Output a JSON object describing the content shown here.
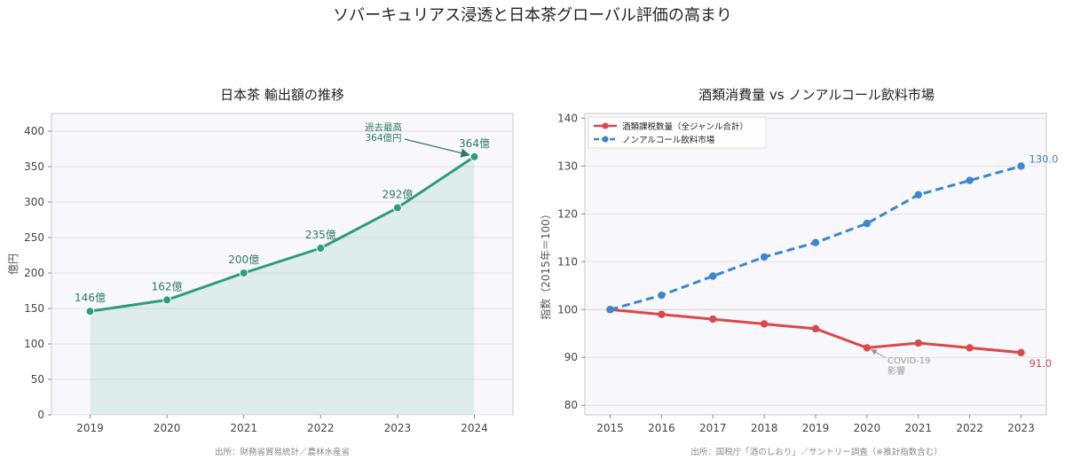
{
  "figure": {
    "title": "ソバーキュリアス浸透と日本茶グローバル評価の高まり"
  },
  "chart_data": [
    {
      "type": "area",
      "title": "日本茶 輸出額の推移",
      "xlabel": "",
      "ylabel": "億円",
      "categories": [
        "2019",
        "2020",
        "2021",
        "2022",
        "2023",
        "2024"
      ],
      "series": [
        {
          "values": [
            146,
            162,
            200,
            235,
            292,
            364
          ],
          "data_labels": [
            "146億",
            "162億",
            "200億",
            "235億",
            "292億",
            "364億"
          ],
          "color": "#2a9d7c"
        }
      ],
      "ylim": [
        0,
        425
      ],
      "yticks": [
        0,
        50,
        100,
        150,
        200,
        250,
        300,
        350,
        400
      ],
      "grid": true,
      "annotation": {
        "lines": [
          "過去最高",
          "364億円"
        ],
        "x": "2024",
        "y": 364
      },
      "source": "出所：財務省貿易統計／農林水産省"
    },
    {
      "type": "line",
      "title": "酒類消費量 vs ノンアルコール飲料市場",
      "xlabel": "",
      "ylabel": "指数（2015年＝100）",
      "categories": [
        "2015",
        "2016",
        "2017",
        "2018",
        "2019",
        "2020",
        "2021",
        "2022",
        "2023"
      ],
      "series": [
        {
          "name": "酒類課税数量（全ジャンル合計）",
          "values": [
            100,
            99,
            98,
            97,
            96,
            92,
            93,
            92,
            91
          ],
          "end_label": "91.0",
          "color": "#d9484b",
          "style": "solid"
        },
        {
          "name": "ノンアルコール飲料市場",
          "values": [
            100,
            103,
            107,
            111,
            114,
            118,
            124,
            127,
            130
          ],
          "end_label": "130.0",
          "color": "#3a86cf",
          "style": "dashed"
        }
      ],
      "ylim": [
        78,
        141
      ],
      "yticks": [
        80,
        90,
        100,
        110,
        120,
        130,
        140
      ],
      "grid": true,
      "legend": "top-left",
      "annotation": {
        "lines": [
          "COVID-19",
          "影響"
        ],
        "x": "2020",
        "y": 92
      },
      "source": "出所：国税庁「酒のしおり」／サントリー調査（※推計指数含む）"
    }
  ]
}
